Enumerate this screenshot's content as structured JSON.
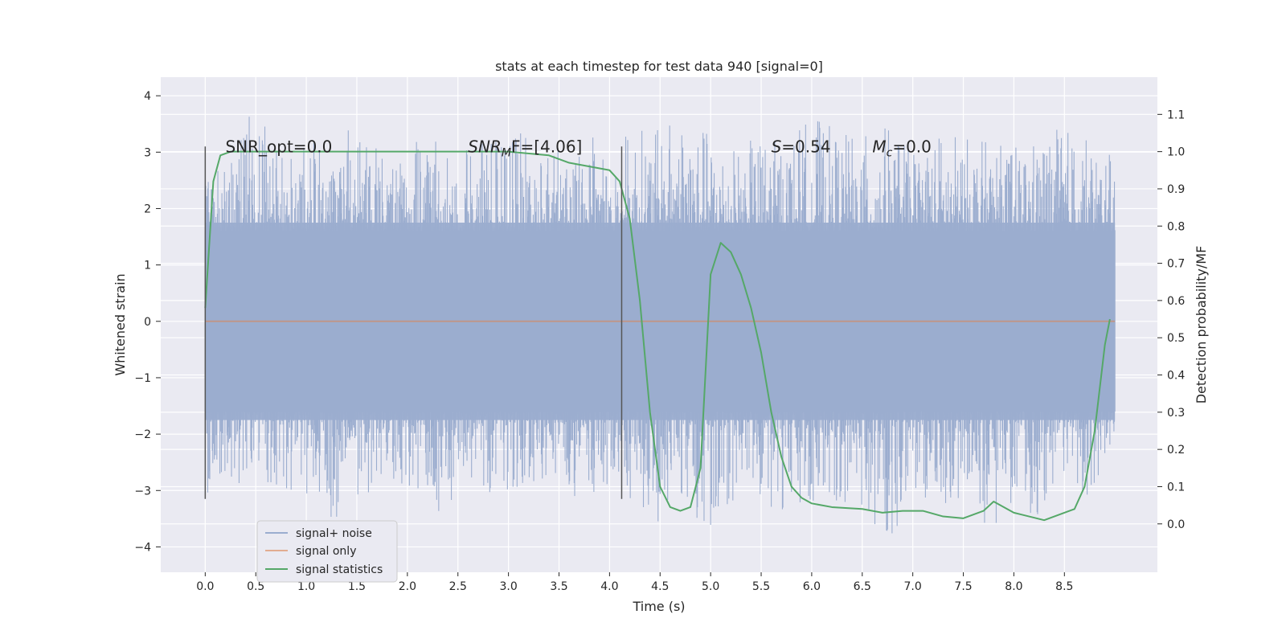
{
  "chart_data": {
    "type": "line",
    "title": "stats at each timestep for test data 940 [signal=0]",
    "xlabel": "Time (s)",
    "ylabel": "Whitened strain",
    "ylabel_right": "Detection probability/MF",
    "xlim": [
      -0.44,
      9.42
    ],
    "ylim": [
      -4.45,
      4.33
    ],
    "ylim_right": [
      -0.13,
      1.2
    ],
    "x_ticks": [
      "0.0",
      "0.5",
      "1.0",
      "1.5",
      "2.0",
      "2.5",
      "3.0",
      "3.5",
      "4.0",
      "4.5",
      "5.0",
      "5.5",
      "6.0",
      "6.5",
      "7.0",
      "7.5",
      "8.0",
      "8.5"
    ],
    "y_ticks": [
      "−4",
      "−3",
      "−2",
      "−1",
      "0",
      "1",
      "2",
      "3",
      "4"
    ],
    "y_ticks_right": [
      "0.0",
      "0.1",
      "0.2",
      "0.3",
      "0.4",
      "0.5",
      "0.6",
      "0.7",
      "0.8",
      "0.9",
      "1.0",
      "1.1"
    ],
    "grid": true,
    "legend_position": "lower-left",
    "colors": {
      "background": "#eaeaf2",
      "grid": "#ffffff",
      "noise": "#9badcf",
      "signal_only": "#dd8452",
      "statistics": "#55a868",
      "marker": "#555555"
    },
    "series": [
      {
        "name": "signal+ noise",
        "axis": "left",
        "envelope_x": [
          0.0,
          0.25,
          0.5,
          0.75,
          1.0,
          1.25,
          1.5,
          1.75,
          2.0,
          2.25,
          2.5,
          2.75,
          3.0,
          3.25,
          3.5,
          3.75,
          4.0,
          4.25,
          4.5,
          4.75,
          5.0,
          5.25,
          5.5,
          5.75,
          6.0,
          6.25,
          6.5,
          6.75,
          7.0,
          7.25,
          7.5,
          7.75,
          8.0,
          8.25,
          8.5,
          8.75,
          9.0
        ],
        "envelope_upper": [
          2.4,
          3.0,
          3.9,
          3.1,
          3.2,
          3.3,
          3.5,
          3.0,
          3.1,
          3.4,
          3.0,
          3.2,
          3.3,
          3.4,
          3.1,
          3.3,
          3.2,
          3.5,
          3.4,
          3.9,
          3.3,
          3.1,
          3.3,
          3.2,
          3.7,
          3.4,
          3.3,
          3.5,
          3.1,
          3.4,
          3.3,
          3.2,
          3.1,
          3.3,
          3.5,
          3.2,
          2.9
        ],
        "envelope_lower": [
          -3.1,
          -2.9,
          -3.1,
          -3.0,
          -3.2,
          -3.5,
          -3.6,
          -2.8,
          -3.0,
          -3.5,
          -3.1,
          -3.0,
          -3.2,
          -3.1,
          -3.0,
          -3.2,
          -3.1,
          -3.4,
          -3.6,
          -3.3,
          -3.8,
          -3.1,
          -3.3,
          -3.4,
          -3.2,
          -3.2,
          -3.3,
          -4.0,
          -3.3,
          -3.5,
          -3.2,
          -3.8,
          -3.2,
          -3.5,
          -3.3,
          -3.1,
          -2.1
        ]
      },
      {
        "name": "signal only",
        "axis": "left",
        "x": [
          0.0,
          9.0
        ],
        "y": [
          0.0,
          0.0
        ]
      },
      {
        "name": "signal statistics",
        "axis": "right",
        "x": [
          0.0,
          0.08,
          0.15,
          0.25,
          0.5,
          1.0,
          2.0,
          3.0,
          3.4,
          3.6,
          3.8,
          4.0,
          4.1,
          4.2,
          4.3,
          4.4,
          4.5,
          4.6,
          4.7,
          4.8,
          4.9,
          5.0,
          5.1,
          5.2,
          5.3,
          5.4,
          5.5,
          5.6,
          5.7,
          5.8,
          5.9,
          6.0,
          6.2,
          6.5,
          6.7,
          6.9,
          7.1,
          7.3,
          7.5,
          7.7,
          7.8,
          8.0,
          8.3,
          8.6,
          8.7,
          8.8,
          8.9,
          8.95
        ],
        "y": [
          0.58,
          0.92,
          0.99,
          1.0,
          1.0,
          1.0,
          1.0,
          1.0,
          0.99,
          0.97,
          0.96,
          0.95,
          0.92,
          0.82,
          0.6,
          0.3,
          0.1,
          0.045,
          0.035,
          0.045,
          0.15,
          0.67,
          0.755,
          0.73,
          0.67,
          0.58,
          0.46,
          0.3,
          0.18,
          0.1,
          0.07,
          0.055,
          0.045,
          0.04,
          0.03,
          0.035,
          0.035,
          0.02,
          0.015,
          0.035,
          0.06,
          0.03,
          0.01,
          0.04,
          0.1,
          0.25,
          0.48,
          0.55
        ]
      }
    ],
    "annotations": [
      {
        "text": "SNR_opt=0.0",
        "x": 0.2,
        "y": 3.0
      },
      {
        "text": "SNR",
        "sub": "M",
        "suffix": "F=[4.06]",
        "italic": true,
        "x": 2.6,
        "y": 3.0
      },
      {
        "text": "S",
        "suffix": "=0.54",
        "italic": true,
        "x": 5.6,
        "y": 3.0
      },
      {
        "text": "M",
        "sub": "c",
        "suffix": "=0.0",
        "italic": true,
        "x": 6.6,
        "y": 3.0
      }
    ],
    "markers_x": [
      0.0,
      4.12
    ]
  }
}
